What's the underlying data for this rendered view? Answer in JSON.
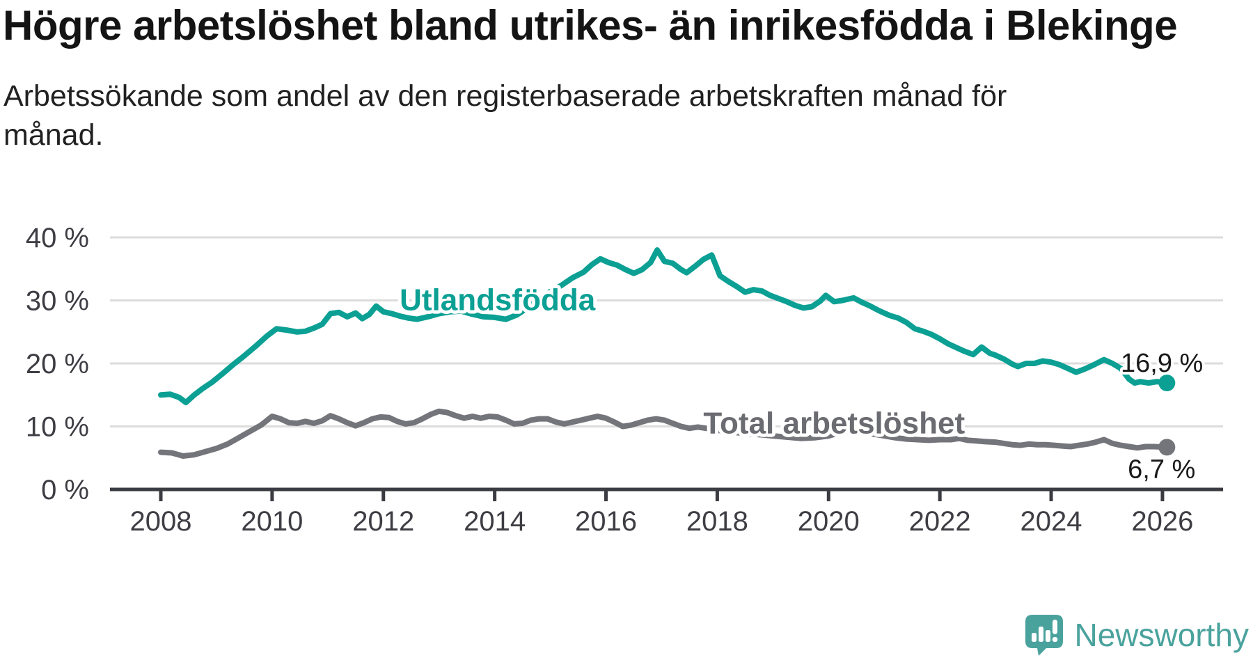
{
  "chart_data": {
    "type": "line",
    "title": "Högre arbetslöshet bland utrikes- än inrikesfödda i Blekinge",
    "subtitle": "Arbetssökande som andel av den registerbaserade arbetskraften månad för månad.",
    "grid": true,
    "legend_position": "inline-labels",
    "x_axis": {
      "range": [
        2008,
        2026.2
      ],
      "ticks": [
        {
          "value": 2008,
          "label": "2008"
        },
        {
          "value": 2010,
          "label": "2010"
        },
        {
          "value": 2012,
          "label": "2012"
        },
        {
          "value": 2014,
          "label": "2014"
        },
        {
          "value": 2016,
          "label": "2016"
        },
        {
          "value": 2018,
          "label": "2018"
        },
        {
          "value": 2020,
          "label": "2020"
        },
        {
          "value": 2022,
          "label": "2022"
        },
        {
          "value": 2024,
          "label": "2024"
        },
        {
          "value": 2026,
          "label": "2026"
        }
      ]
    },
    "y_axis": {
      "unit": "%",
      "range": [
        0,
        40
      ],
      "ticks": [
        {
          "value": 0,
          "label": "0 %"
        },
        {
          "value": 10,
          "label": "10 %"
        },
        {
          "value": 20,
          "label": "20 %"
        },
        {
          "value": 30,
          "label": "30 %"
        },
        {
          "value": 40,
          "label": "40 %"
        }
      ]
    },
    "series": [
      {
        "name": "Utlandsfödda",
        "slug": "utlandsfodda",
        "color": "#0CA094",
        "label_color": "#0CA094",
        "end_label": "16,9 %",
        "end_value": 16.9,
        "label_at": [
          2014.05,
          30.1
        ],
        "end_label_offset": [
          52,
          -16
        ],
        "points": [
          [
            2008.0,
            15.0
          ],
          [
            2008.17,
            15.1
          ],
          [
            2008.33,
            14.6
          ],
          [
            2008.45,
            13.8
          ],
          [
            2008.6,
            15.0
          ],
          [
            2008.75,
            16.0
          ],
          [
            2008.92,
            17.0
          ],
          [
            2009.1,
            18.3
          ],
          [
            2009.3,
            19.8
          ],
          [
            2009.5,
            21.2
          ],
          [
            2009.7,
            22.7
          ],
          [
            2009.9,
            24.3
          ],
          [
            2010.08,
            25.5
          ],
          [
            2010.25,
            25.3
          ],
          [
            2010.45,
            25.0
          ],
          [
            2010.6,
            25.1
          ],
          [
            2010.75,
            25.6
          ],
          [
            2010.9,
            26.2
          ],
          [
            2011.05,
            27.9
          ],
          [
            2011.2,
            28.1
          ],
          [
            2011.35,
            27.4
          ],
          [
            2011.5,
            28.0
          ],
          [
            2011.62,
            27.1
          ],
          [
            2011.75,
            27.8
          ],
          [
            2011.87,
            29.1
          ],
          [
            2012.0,
            28.2
          ],
          [
            2012.15,
            27.9
          ],
          [
            2012.3,
            27.5
          ],
          [
            2012.45,
            27.2
          ],
          [
            2012.6,
            27.0
          ],
          [
            2012.8,
            27.4
          ],
          [
            2013.0,
            27.9
          ],
          [
            2013.2,
            28.2
          ],
          [
            2013.4,
            28.3
          ],
          [
            2013.6,
            27.8
          ],
          [
            2013.8,
            27.4
          ],
          [
            2014.0,
            27.3
          ],
          [
            2014.2,
            27.0
          ],
          [
            2014.4,
            27.7
          ],
          [
            2014.6,
            28.9
          ],
          [
            2014.8,
            30.2
          ],
          [
            2015.0,
            31.4
          ],
          [
            2015.2,
            32.4
          ],
          [
            2015.4,
            33.6
          ],
          [
            2015.6,
            34.5
          ],
          [
            2015.75,
            35.7
          ],
          [
            2015.9,
            36.6
          ],
          [
            2016.05,
            36.0
          ],
          [
            2016.2,
            35.6
          ],
          [
            2016.35,
            34.9
          ],
          [
            2016.5,
            34.3
          ],
          [
            2016.65,
            34.9
          ],
          [
            2016.8,
            36.0
          ],
          [
            2016.92,
            38.0
          ],
          [
            2017.05,
            36.2
          ],
          [
            2017.2,
            35.9
          ],
          [
            2017.35,
            34.9
          ],
          [
            2017.45,
            34.4
          ],
          [
            2017.6,
            35.4
          ],
          [
            2017.75,
            36.5
          ],
          [
            2017.9,
            37.2
          ],
          [
            2018.05,
            33.9
          ],
          [
            2018.2,
            33.0
          ],
          [
            2018.35,
            32.2
          ],
          [
            2018.5,
            31.3
          ],
          [
            2018.65,
            31.7
          ],
          [
            2018.8,
            31.5
          ],
          [
            2018.95,
            30.8
          ],
          [
            2019.1,
            30.3
          ],
          [
            2019.25,
            29.8
          ],
          [
            2019.4,
            29.2
          ],
          [
            2019.55,
            28.8
          ],
          [
            2019.7,
            29.0
          ],
          [
            2019.85,
            29.9
          ],
          [
            2019.95,
            30.8
          ],
          [
            2020.1,
            29.8
          ],
          [
            2020.25,
            30.0
          ],
          [
            2020.45,
            30.4
          ],
          [
            2020.6,
            29.7
          ],
          [
            2020.75,
            29.1
          ],
          [
            2020.9,
            28.4
          ],
          [
            2021.1,
            27.6
          ],
          [
            2021.25,
            27.2
          ],
          [
            2021.4,
            26.5
          ],
          [
            2021.55,
            25.5
          ],
          [
            2021.7,
            25.1
          ],
          [
            2021.85,
            24.6
          ],
          [
            2022.0,
            23.9
          ],
          [
            2022.15,
            23.1
          ],
          [
            2022.3,
            22.5
          ],
          [
            2022.45,
            21.9
          ],
          [
            2022.6,
            21.4
          ],
          [
            2022.75,
            22.6
          ],
          [
            2022.9,
            21.6
          ],
          [
            2023.0,
            21.3
          ],
          [
            2023.15,
            20.7
          ],
          [
            2023.3,
            19.9
          ],
          [
            2023.4,
            19.5
          ],
          [
            2023.55,
            20.0
          ],
          [
            2023.7,
            20.0
          ],
          [
            2023.85,
            20.4
          ],
          [
            2024.0,
            20.2
          ],
          [
            2024.15,
            19.8
          ],
          [
            2024.3,
            19.2
          ],
          [
            2024.45,
            18.6
          ],
          [
            2024.6,
            19.1
          ],
          [
            2024.75,
            19.7
          ],
          [
            2024.95,
            20.6
          ],
          [
            2025.1,
            20.0
          ],
          [
            2025.25,
            19.2
          ],
          [
            2025.4,
            17.5
          ],
          [
            2025.5,
            16.9
          ],
          [
            2025.6,
            17.1
          ],
          [
            2025.75,
            16.9
          ],
          [
            2025.9,
            17.1
          ],
          [
            2026.08,
            16.9
          ]
        ]
      },
      {
        "name": "Total arbetslöshet",
        "slug": "total-arbetsloshet",
        "color": "#74747B",
        "label_color": "#6B6B72",
        "end_label": "6,7 %",
        "end_value": 6.7,
        "label_at": [
          2020.1,
          10.55
        ],
        "end_label_offset": [
          41,
          44
        ],
        "points": [
          [
            2008.0,
            5.9
          ],
          [
            2008.2,
            5.8
          ],
          [
            2008.4,
            5.3
          ],
          [
            2008.6,
            5.5
          ],
          [
            2008.8,
            6.0
          ],
          [
            2009.0,
            6.5
          ],
          [
            2009.2,
            7.2
          ],
          [
            2009.4,
            8.2
          ],
          [
            2009.6,
            9.2
          ],
          [
            2009.8,
            10.2
          ],
          [
            2010.0,
            11.6
          ],
          [
            2010.15,
            11.2
          ],
          [
            2010.3,
            10.6
          ],
          [
            2010.45,
            10.5
          ],
          [
            2010.6,
            10.8
          ],
          [
            2010.75,
            10.5
          ],
          [
            2010.9,
            10.9
          ],
          [
            2011.05,
            11.7
          ],
          [
            2011.2,
            11.2
          ],
          [
            2011.35,
            10.6
          ],
          [
            2011.5,
            10.1
          ],
          [
            2011.65,
            10.6
          ],
          [
            2011.8,
            11.2
          ],
          [
            2011.95,
            11.5
          ],
          [
            2012.1,
            11.4
          ],
          [
            2012.25,
            10.8
          ],
          [
            2012.4,
            10.4
          ],
          [
            2012.55,
            10.6
          ],
          [
            2012.7,
            11.2
          ],
          [
            2012.85,
            11.9
          ],
          [
            2013.0,
            12.4
          ],
          [
            2013.15,
            12.2
          ],
          [
            2013.3,
            11.7
          ],
          [
            2013.45,
            11.3
          ],
          [
            2013.6,
            11.6
          ],
          [
            2013.75,
            11.3
          ],
          [
            2013.9,
            11.6
          ],
          [
            2014.05,
            11.5
          ],
          [
            2014.2,
            11.0
          ],
          [
            2014.35,
            10.4
          ],
          [
            2014.5,
            10.5
          ],
          [
            2014.65,
            11.0
          ],
          [
            2014.8,
            11.2
          ],
          [
            2014.95,
            11.2
          ],
          [
            2015.1,
            10.7
          ],
          [
            2015.25,
            10.4
          ],
          [
            2015.4,
            10.7
          ],
          [
            2015.55,
            11.0
          ],
          [
            2015.7,
            11.3
          ],
          [
            2015.85,
            11.6
          ],
          [
            2016.0,
            11.3
          ],
          [
            2016.15,
            10.7
          ],
          [
            2016.3,
            10.0
          ],
          [
            2016.45,
            10.2
          ],
          [
            2016.6,
            10.6
          ],
          [
            2016.75,
            11.0
          ],
          [
            2016.9,
            11.2
          ],
          [
            2017.05,
            11.0
          ],
          [
            2017.2,
            10.5
          ],
          [
            2017.35,
            10.0
          ],
          [
            2017.5,
            9.7
          ],
          [
            2017.65,
            9.9
          ],
          [
            2017.8,
            9.7
          ],
          [
            2018.0,
            9.4
          ],
          [
            2018.25,
            9.1
          ],
          [
            2018.5,
            8.9
          ],
          [
            2018.75,
            8.7
          ],
          [
            2019.0,
            8.5
          ],
          [
            2019.25,
            8.3
          ],
          [
            2019.5,
            8.1
          ],
          [
            2019.75,
            8.2
          ],
          [
            2020.0,
            8.5
          ],
          [
            2020.2,
            9.0
          ],
          [
            2020.4,
            9.3
          ],
          [
            2020.6,
            9.1
          ],
          [
            2020.8,
            8.8
          ],
          [
            2021.0,
            8.5
          ],
          [
            2021.2,
            8.2
          ],
          [
            2021.4,
            8.0
          ],
          [
            2021.6,
            7.9
          ],
          [
            2021.8,
            7.8
          ],
          [
            2022.0,
            7.9
          ],
          [
            2022.2,
            7.9
          ],
          [
            2022.35,
            8.1
          ],
          [
            2022.5,
            7.8
          ],
          [
            2022.65,
            7.7
          ],
          [
            2022.8,
            7.6
          ],
          [
            2023.0,
            7.5
          ],
          [
            2023.15,
            7.3
          ],
          [
            2023.3,
            7.1
          ],
          [
            2023.45,
            7.0
          ],
          [
            2023.6,
            7.2
          ],
          [
            2023.75,
            7.1
          ],
          [
            2023.9,
            7.1
          ],
          [
            2024.05,
            7.0
          ],
          [
            2024.2,
            6.9
          ],
          [
            2024.35,
            6.8
          ],
          [
            2024.5,
            7.0
          ],
          [
            2024.65,
            7.2
          ],
          [
            2024.8,
            7.5
          ],
          [
            2024.95,
            7.9
          ],
          [
            2025.1,
            7.3
          ],
          [
            2025.25,
            7.0
          ],
          [
            2025.4,
            6.8
          ],
          [
            2025.55,
            6.6
          ],
          [
            2025.7,
            6.8
          ],
          [
            2025.85,
            6.8
          ],
          [
            2026.08,
            6.7
          ]
        ]
      }
    ]
  },
  "branding": {
    "wordmark": "Newsworthy",
    "color": "#4AA29D"
  }
}
